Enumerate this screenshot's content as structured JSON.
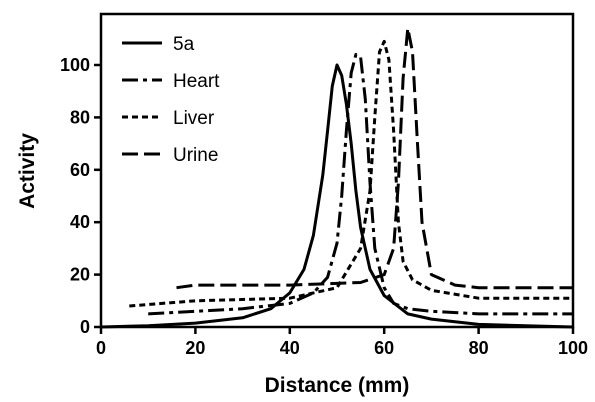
{
  "chart_data": {
    "type": "line",
    "title": "",
    "xlabel": "Distance (mm)",
    "ylabel": "Activity",
    "xlim": [
      0,
      100
    ],
    "ylim": [
      0,
      115
    ],
    "xticks": [
      0,
      20,
      40,
      60,
      80,
      100
    ],
    "yticks": [
      0,
      20,
      40,
      60,
      80,
      100
    ],
    "grid": false,
    "legend": "top-left",
    "series": [
      {
        "name": "5a",
        "style": "solid",
        "x": [
          0,
          10,
          20,
          30,
          36,
          40,
          43,
          45,
          47,
          48,
          49,
          50,
          51,
          52,
          53,
          54,
          55,
          57,
          60,
          65,
          70,
          80,
          90,
          100
        ],
        "y": [
          0,
          0.5,
          1.5,
          3.5,
          7,
          13,
          22,
          35,
          58,
          75,
          92,
          100,
          96,
          85,
          70,
          52,
          38,
          22,
          12,
          5,
          3,
          1,
          0.5,
          0
        ]
      },
      {
        "name": "Heart",
        "style": "dash-dot",
        "x": [
          10,
          20,
          30,
          40,
          45,
          48,
          50,
          51,
          52,
          53,
          54,
          55,
          56,
          57,
          58,
          60,
          62,
          65,
          70,
          80,
          90,
          100
        ],
        "y": [
          5,
          6,
          7,
          9,
          13,
          19,
          32,
          50,
          75,
          97,
          104,
          103,
          87,
          55,
          30,
          15,
          9,
          7,
          6,
          5,
          5,
          5
        ]
      },
      {
        "name": "Liver",
        "style": "dotted",
        "x": [
          6,
          20,
          40,
          50,
          55,
          57,
          58,
          59,
          60,
          61,
          62,
          63,
          64,
          66,
          70,
          80,
          100
        ],
        "y": [
          8,
          10,
          11,
          15,
          30,
          52,
          80,
          105,
          109,
          102,
          75,
          40,
          25,
          18,
          14,
          11,
          11
        ]
      },
      {
        "name": "Urine",
        "style": "dashed",
        "x": [
          16,
          20,
          40,
          55,
          60,
          62,
          63,
          64,
          65,
          66,
          67,
          68,
          70,
          75,
          80,
          100
        ],
        "y": [
          15,
          16,
          16,
          17,
          20,
          30,
          55,
          95,
          114,
          105,
          72,
          40,
          20,
          16,
          15,
          15
        ]
      }
    ]
  },
  "colors": {
    "line": "#000000",
    "background": "#ffffff"
  }
}
